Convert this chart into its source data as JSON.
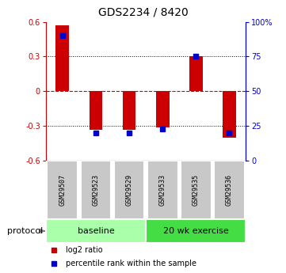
{
  "title": "GDS2234 / 8420",
  "samples": [
    "GSM29507",
    "GSM29523",
    "GSM29529",
    "GSM29533",
    "GSM29535",
    "GSM29536"
  ],
  "log2_ratio": [
    0.57,
    -0.33,
    -0.33,
    -0.31,
    0.3,
    -0.4
  ],
  "percentile_rank": [
    90,
    20,
    20,
    23,
    75,
    20
  ],
  "ylim_left": [
    -0.6,
    0.6
  ],
  "ylim_right": [
    0,
    100
  ],
  "left_yticks": [
    -0.6,
    -0.3,
    0,
    0.3,
    0.6
  ],
  "right_yticks": [
    0,
    25,
    50,
    75,
    100
  ],
  "right_yticklabels": [
    "0",
    "25",
    "50",
    "75",
    "100%"
  ],
  "dotted_lines": [
    -0.3,
    0.3
  ],
  "bar_color": "#cc0000",
  "dot_color": "#0000cc",
  "bar_width": 0.4,
  "protocol_groups": [
    {
      "label": "baseline",
      "start": 0,
      "end": 2,
      "color": "#aaffaa"
    },
    {
      "label": "20 wk exercise",
      "start": 3,
      "end": 5,
      "color": "#44dd44"
    }
  ],
  "protocol_label": "protocol",
  "legend_items": [
    {
      "label": "log2 ratio",
      "color": "#cc0000"
    },
    {
      "label": "percentile rank within the sample",
      "color": "#0000cc"
    }
  ],
  "left_axis_color": "#cc0000",
  "right_axis_color": "#0000cc",
  "zero_line_color": "#cc0000",
  "background_color": "#ffffff",
  "title_fontsize": 10,
  "tick_fontsize": 7,
  "label_fontsize": 7,
  "sample_fontsize": 6,
  "protocol_fontsize": 8
}
